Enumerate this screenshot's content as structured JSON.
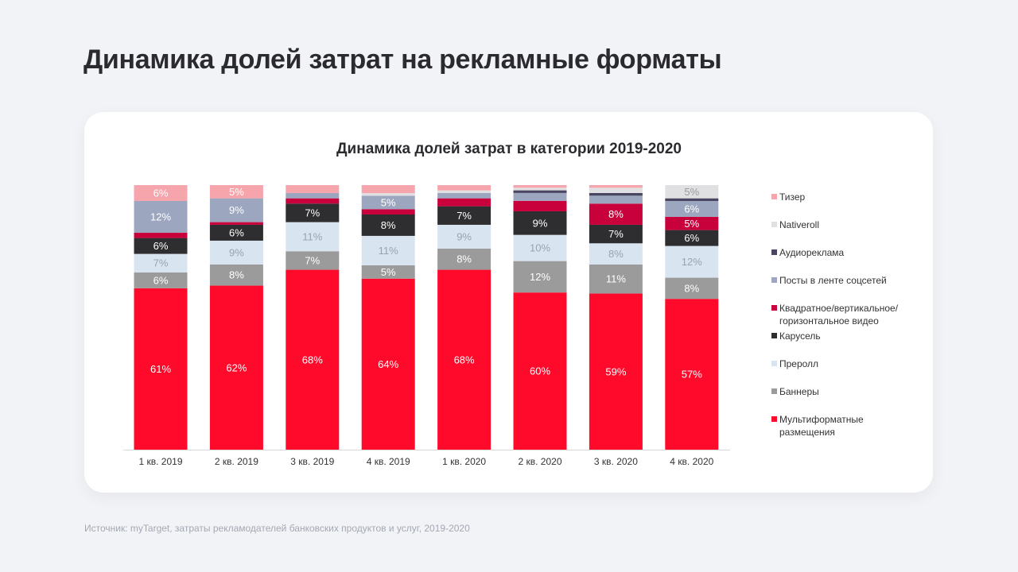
{
  "header": {
    "title": "Динамика долей затрат на рекламные форматы"
  },
  "footer": {
    "source": "Источник: myTarget, затраты рекламодателей банковских продуктов и услуг, 2019-2020"
  },
  "chart_data": {
    "type": "bar",
    "stacked": true,
    "title": "Динамика долей затрат в категории 2019-2020",
    "xlabel": "",
    "ylabel": "",
    "ylim": [
      0,
      100
    ],
    "unit": "%",
    "grid": false,
    "legend_placement": "right",
    "categories": [
      "1 кв. 2019",
      "2 кв. 2019",
      "3 кв. 2019",
      "4 кв. 2019",
      "1 кв. 2020",
      "2 кв. 2020",
      "3 кв. 2020",
      "4 кв. 2020"
    ],
    "series": [
      {
        "name": "Тизер",
        "color": "#f6a5ac",
        "label_color": "#ffffff",
        "values": [
          6,
          5,
          3,
          3,
          2,
          1,
          1,
          0
        ]
      },
      {
        "name": "Nativeroll",
        "color": "#e0e0e2",
        "label_color": "#9a9a9a",
        "values": [
          0,
          0,
          0,
          1,
          1,
          1,
          2,
          5
        ]
      },
      {
        "name": "Аудиореклама",
        "color": "#4a4560",
        "label_color": "#ffffff",
        "values": [
          0,
          0,
          0,
          0,
          0,
          1,
          1,
          1
        ]
      },
      {
        "name": "Посты в ленте соцсетей",
        "color": "#9ca7bf",
        "label_color": "#ffffff",
        "values": [
          12,
          9,
          2,
          5,
          2,
          3,
          3,
          6
        ]
      },
      {
        "name": "Квадратное/вертикальное/горизонтальное видео",
        "legend_lines": [
          "Квадратное/вертикальное/",
          "горизонтальное видео"
        ],
        "color": "#c8003c",
        "label_color": "#ffffff",
        "values": [
          2,
          1,
          2,
          2,
          3,
          4,
          8,
          5
        ]
      },
      {
        "name": "Карусель",
        "color": "#2e2e30",
        "label_color": "#ffffff",
        "values": [
          6,
          6,
          7,
          8,
          7,
          9,
          7,
          6
        ]
      },
      {
        "name": "Преролл",
        "color": "#d9e4f1",
        "label_color": "#9aa3b0",
        "values": [
          7,
          9,
          11,
          11,
          9,
          10,
          8,
          12
        ]
      },
      {
        "name": "Баннеры",
        "color": "#9b9b9b",
        "label_color": "#ffffff",
        "values": [
          6,
          8,
          7,
          5,
          8,
          12,
          11,
          8
        ]
      },
      {
        "name": "Мультиформатные размещения",
        "legend_lines": [
          "Мультиформатные",
          "размещения"
        ],
        "color": "#ff0a2b",
        "label_color": "#ffffff",
        "values": [
          61,
          62,
          68,
          64,
          68,
          60,
          59,
          57
        ]
      }
    ]
  }
}
